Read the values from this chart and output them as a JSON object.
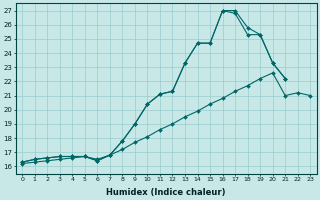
{
  "xlabel": "Humidex (Indice chaleur)",
  "bg_color": "#c8e8e8",
  "grid_color": "#99cccc",
  "line_color": "#006666",
  "xlim": [
    -0.5,
    23.5
  ],
  "ylim": [
    15.5,
    27.5
  ],
  "xticks": [
    0,
    1,
    2,
    3,
    4,
    5,
    6,
    7,
    8,
    9,
    10,
    11,
    12,
    13,
    14,
    15,
    16,
    17,
    18,
    19,
    20,
    21,
    22,
    23
  ],
  "yticks": [
    16,
    17,
    18,
    19,
    20,
    21,
    22,
    23,
    24,
    25,
    26,
    27
  ],
  "series": [
    {
      "x": [
        0,
        1,
        2,
        3,
        4,
        5,
        6,
        7,
        8,
        9,
        10,
        11,
        12,
        13,
        14,
        15,
        16,
        17,
        18,
        19,
        20,
        21
      ],
      "y": [
        16.3,
        16.5,
        16.6,
        16.7,
        16.7,
        16.7,
        16.4,
        16.8,
        17.8,
        19.0,
        20.4,
        21.1,
        21.3,
        23.3,
        24.7,
        24.7,
        27.0,
        26.8,
        25.3,
        25.3,
        23.3,
        22.2
      ]
    },
    {
      "x": [
        0,
        1,
        2,
        3,
        4,
        5,
        6,
        7,
        8,
        9,
        10,
        11,
        12,
        13,
        14,
        15,
        16,
        17,
        18,
        19,
        20,
        21
      ],
      "y": [
        16.3,
        16.5,
        16.6,
        16.7,
        16.7,
        16.7,
        16.4,
        16.8,
        17.8,
        19.0,
        20.4,
        21.1,
        21.3,
        23.3,
        24.7,
        24.7,
        27.0,
        27.0,
        25.8,
        25.3,
        23.3,
        22.2
      ]
    },
    {
      "x": [
        0,
        1,
        2,
        3,
        4,
        5,
        6,
        7,
        8,
        9,
        10,
        11,
        12,
        13,
        14,
        15,
        16,
        17,
        18,
        19,
        20,
        21,
        22,
        23
      ],
      "y": [
        16.2,
        16.3,
        16.4,
        16.5,
        16.6,
        16.7,
        16.5,
        16.8,
        17.2,
        17.7,
        18.1,
        18.6,
        19.0,
        19.5,
        19.9,
        20.4,
        20.8,
        21.3,
        21.7,
        22.2,
        22.6,
        21.0,
        21.2,
        21.0
      ]
    }
  ]
}
